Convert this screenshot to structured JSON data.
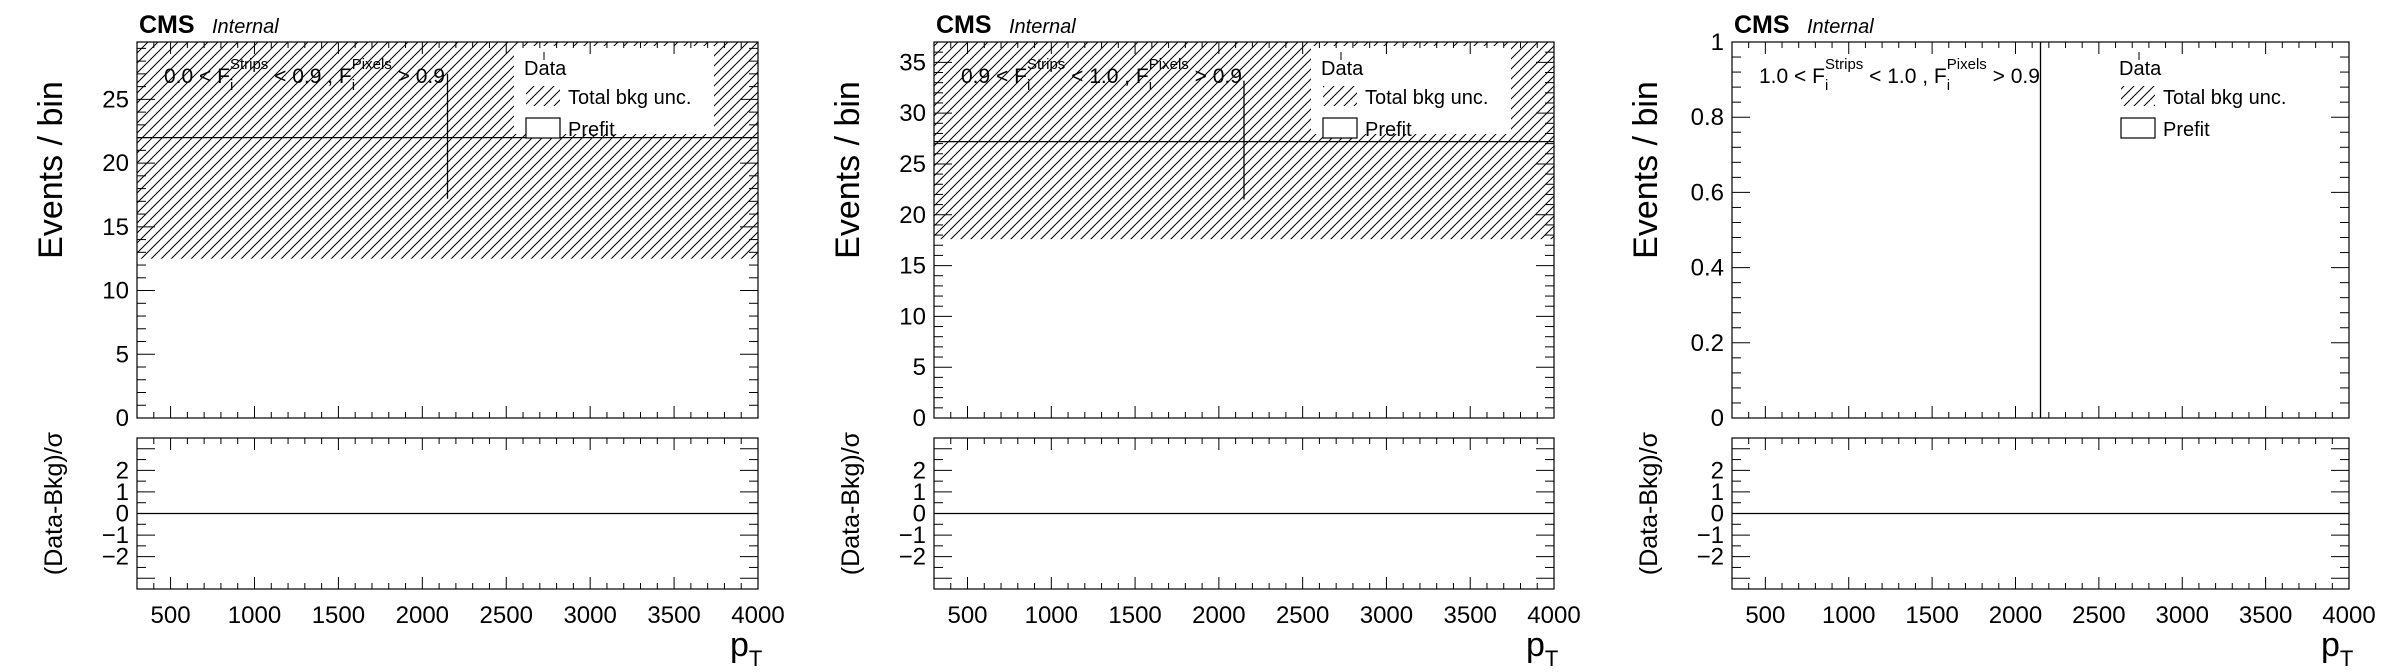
{
  "chart_data": [
    {
      "type": "bar",
      "experiment_label": "CMS",
      "experiment_sublabel": "Internal",
      "region_label": {
        "prefix": "0.0 < F",
        "sub1": "i",
        "sup1": "Strips",
        "middle": " < 0.9 , F",
        "sub2": "i",
        "sup2": "Pixels",
        "suffix": " > 0.9"
      },
      "ylabel": "Events / bin",
      "ratio_ylabel": "(Data-Bkg)/σ",
      "xlabel": "p",
      "xlabel_sub": "T",
      "xlim": [
        300,
        4000
      ],
      "ylim": [
        0,
        29.5
      ],
      "yticks": [
        0,
        5,
        10,
        15,
        20,
        25
      ],
      "ratio_ylim": [
        -3.5,
        3.5
      ],
      "ratio_yticks": [
        -2,
        -1,
        0,
        1,
        2
      ],
      "xticks": [
        500,
        1000,
        1500,
        2000,
        2500,
        3000,
        3500,
        4000
      ],
      "legend": [
        "Data",
        "Total bkg unc.",
        " Prefit"
      ],
      "prefit_value": 22.0,
      "bkg_unc_band": [
        12.5,
        29.5
      ],
      "data_point": {
        "x": 2150,
        "y": 22.0,
        "err_low": 17.2,
        "err_high": 27.0
      },
      "ratio_value": 0
    },
    {
      "type": "bar",
      "experiment_label": "CMS",
      "experiment_sublabel": "Internal",
      "region_label": {
        "prefix": "0.9 < F",
        "sub1": "i",
        "sup1": "Strips",
        "middle": " < 1.0 , F",
        "sub2": "i",
        "sup2": "Pixels",
        "suffix": " > 0.9"
      },
      "ylabel": "Events / bin",
      "ratio_ylabel": "(Data-Bkg)/σ",
      "xlabel": "p",
      "xlabel_sub": "T",
      "xlim": [
        300,
        4000
      ],
      "ylim": [
        0,
        37
      ],
      "yticks": [
        0,
        5,
        10,
        15,
        20,
        25,
        30,
        35
      ],
      "ratio_ylim": [
        -3.5,
        3.5
      ],
      "ratio_yticks": [
        -2,
        -1,
        0,
        1,
        2
      ],
      "xticks": [
        500,
        1000,
        1500,
        2000,
        2500,
        3000,
        3500,
        4000
      ],
      "legend": [
        "Data",
        "Total bkg unc.",
        "Prefit"
      ],
      "prefit_value": 27.2,
      "bkg_unc_band": [
        17.6,
        37
      ],
      "data_point": {
        "x": 2150,
        "y": 27.2,
        "err_low": 21.5,
        "err_high": 33.2
      },
      "ratio_value": 0
    },
    {
      "type": "bar",
      "experiment_label": "CMS",
      "experiment_sublabel": "Internal",
      "region_label": {
        "prefix": "1.0 < F",
        "sub1": "i",
        "sup1": "Strips",
        "middle": " < 1.0 , F",
        "sub2": "i",
        "sup2": "Pixels",
        "suffix": " > 0.9"
      },
      "ylabel": "Events / bin",
      "ratio_ylabel": "(Data-Bkg)/σ",
      "xlabel": "p",
      "xlabel_sub": "T",
      "xlim": [
        300,
        4000
      ],
      "ylim": [
        0,
        1
      ],
      "yticks": [
        0,
        0.2,
        0.4,
        0.6,
        0.8,
        1
      ],
      "ratio_ylim": [
        -3.5,
        3.5
      ],
      "ratio_yticks": [
        -2,
        -1,
        0,
        1,
        2
      ],
      "xticks": [
        500,
        1000,
        1500,
        2000,
        2500,
        3000,
        3500,
        4000
      ],
      "legend": [
        "Data",
        "Total bkg unc.",
        "Prefit"
      ],
      "prefit_value": 0,
      "bkg_unc_band": [
        0,
        0
      ],
      "data_point": {
        "x": 2150,
        "y": 0,
        "err_low": 0,
        "err_high": 1
      },
      "ratio_value": 0
    }
  ]
}
